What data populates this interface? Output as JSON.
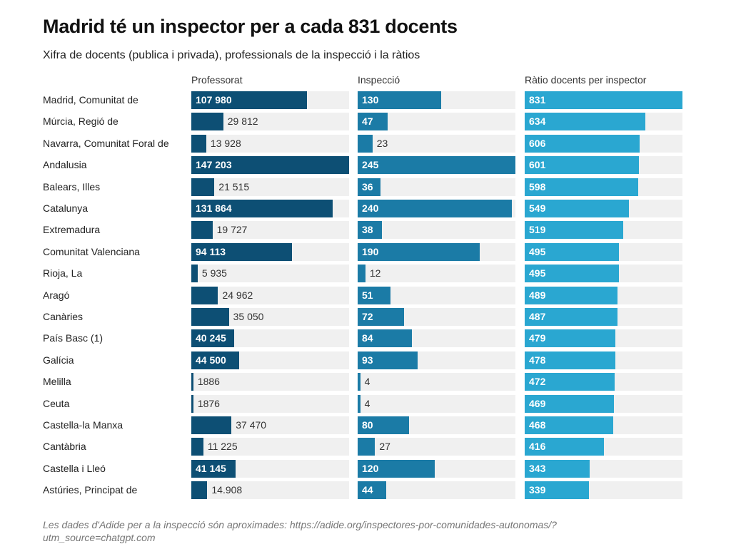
{
  "title": "Madrid té un inspector per a cada 831 docents",
  "subtitle": "Xifra de docents (publica i privada), professionals de la inspecció i la ràtios",
  "footnote": "Les dades d'Adide per a la inspecció són aproximades: https://adide.org/inspectores-por-comunidades-autonomas/?utm_source=chatgpt.com",
  "colors": {
    "professorat": "#0d4f74",
    "inspeccio": "#1b7ba6",
    "ratio": "#2aa7d1",
    "track": "#f0f0f0"
  },
  "chart_data": {
    "type": "bar",
    "orientation": "horizontal",
    "title": "Madrid té un inspector per a cada 831 docents",
    "subtitle": "Xifra de docents (publica i privada), professionals de la inspecció i la ràtios",
    "categories": [
      "Madrid, Comunitat de",
      "Múrcia, Regió de",
      "Navarra, Comunitat Foral de",
      "Andalusia",
      "Balears, Illes",
      "Catalunya",
      "Extremadura",
      "Comunitat Valenciana",
      "Rioja, La",
      "Aragó",
      "Canàries",
      "País Basc (1)",
      "Galícia",
      "Melilla",
      "Ceuta",
      "Castella-la Manxa",
      "Cantàbria",
      "Castella i Lleó",
      "Astúries, Principat de"
    ],
    "series": [
      {
        "name": "Professorat",
        "values": [
          107980,
          29812,
          13928,
          147203,
          21515,
          131864,
          19727,
          94113,
          5935,
          24962,
          35050,
          40245,
          44500,
          1886,
          1876,
          37470,
          11225,
          41145,
          14908
        ],
        "labels": [
          "107 980",
          "29 812",
          "13 928",
          "147 203",
          "21 515",
          "131 864",
          "19 727",
          "94 113",
          "5 935",
          "24 962",
          "35 050",
          "40 245",
          "44 500",
          "1886",
          "1876",
          "37 470",
          "11 225",
          "41 145",
          "14.908"
        ],
        "inside": [
          true,
          false,
          false,
          true,
          false,
          true,
          false,
          true,
          false,
          false,
          false,
          true,
          true,
          false,
          false,
          false,
          false,
          true,
          false
        ],
        "max": 147203
      },
      {
        "name": "Inspecció",
        "values": [
          130,
          47,
          23,
          245,
          36,
          240,
          38,
          190,
          12,
          51,
          72,
          84,
          93,
          4,
          4,
          80,
          27,
          120,
          44
        ],
        "labels": [
          "130",
          "47",
          "23",
          "245",
          "36",
          "240",
          "38",
          "190",
          "12",
          "51",
          "72",
          "84",
          "93",
          "4",
          "4",
          "80",
          "27",
          "120",
          "44"
        ],
        "inside": [
          true,
          true,
          false,
          true,
          true,
          true,
          true,
          true,
          false,
          true,
          true,
          true,
          true,
          false,
          false,
          true,
          false,
          true,
          true
        ],
        "max": 245
      },
      {
        "name": "Ràtio docents per inspector",
        "values": [
          831,
          634,
          606,
          601,
          598,
          549,
          519,
          495,
          495,
          489,
          487,
          479,
          478,
          472,
          469,
          468,
          416,
          343,
          339
        ],
        "labels": [
          "831",
          "634",
          "606",
          "601",
          "598",
          "549",
          "519",
          "495",
          "495",
          "489",
          "487",
          "479",
          "478",
          "472",
          "469",
          "468",
          "416",
          "343",
          "339"
        ],
        "inside": [
          true,
          true,
          true,
          true,
          true,
          true,
          true,
          true,
          true,
          true,
          true,
          true,
          true,
          true,
          true,
          true,
          true,
          true,
          true
        ],
        "max": 831
      }
    ]
  }
}
